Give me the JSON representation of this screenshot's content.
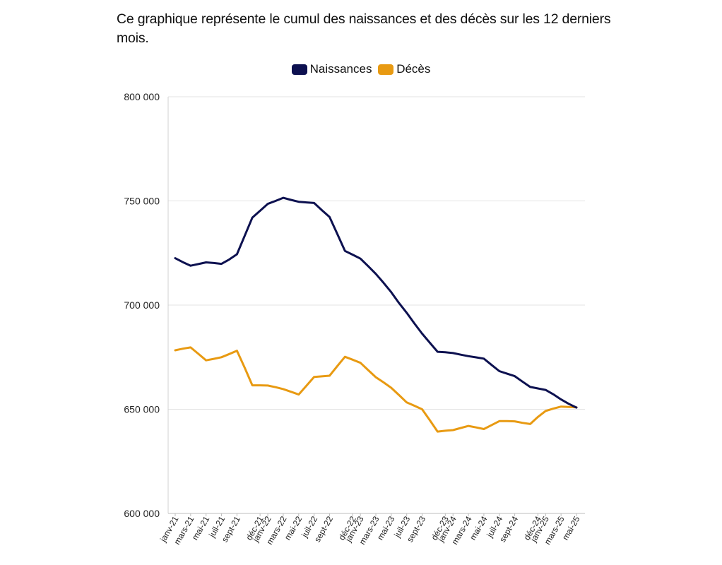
{
  "chart_data": {
    "type": "line",
    "title": "Ce graphique représente le cumul des naissances et des décès sur les 12 derniers mois.",
    "xlabel": "",
    "ylabel": "",
    "ylim": [
      600000,
      800000
    ],
    "yticks": [
      600000,
      650000,
      700000,
      750000,
      800000
    ],
    "ytick_labels": [
      "600 000",
      "650 000",
      "700 000",
      "750 000",
      "800 000"
    ],
    "grid": true,
    "legend_position": "top-center",
    "categories": [
      "janv-21",
      "févr-21",
      "mars-21",
      "avr-21",
      "mai-21",
      "juin-21",
      "juil-21",
      "août-21",
      "sept-21",
      "oct-21",
      "nov-21",
      "déc-21",
      "janv-22",
      "févr-22",
      "mars-22",
      "avr-22",
      "mai-22",
      "juin-22",
      "juil-22",
      "août-22",
      "sept-22",
      "oct-22",
      "nov-22",
      "déc-22",
      "janv-23",
      "févr-23",
      "mars-23",
      "avr-23",
      "mai-23",
      "juin-23",
      "juil-23",
      "août-23",
      "sept-23",
      "oct-23",
      "nov-23",
      "déc-23",
      "janv-24",
      "févr-24",
      "mars-24",
      "avr-24",
      "mai-24",
      "juin-24",
      "juil-24",
      "août-24",
      "sept-24",
      "oct-24",
      "nov-24",
      "déc-24",
      "janv-25",
      "févr-25",
      "mars-25",
      "avr-25",
      "mai-25"
    ],
    "x_tick_labels": [
      "janv-21",
      "mars-21",
      "mai-21",
      "juil-21",
      "sept-21",
      "déc-21",
      "janv-22",
      "mars-22",
      "mai-22",
      "juil-22",
      "sept-22",
      "déc-22",
      "janv-23",
      "mars-23",
      "mai-23",
      "juil-23",
      "sept-23",
      "déc-23",
      "janv-24",
      "mars-24",
      "mai-24",
      "juil-24",
      "sept-24",
      "déc-24",
      "janv-25",
      "mars-25",
      "mai-25"
    ],
    "series": [
      {
        "name": "Naissances",
        "color": "#0d1150",
        "values": [
          722500,
          720600,
          718900,
          719700,
          720500,
          720200,
          719800,
          721900,
          724400,
          733200,
          742000,
          745300,
          748600,
          750000,
          751500,
          750500,
          749600,
          749300,
          749000,
          745600,
          742300,
          734200,
          726000,
          724200,
          722300,
          718700,
          715000,
          710700,
          706200,
          701000,
          696300,
          691200,
          686300,
          681900,
          677600,
          677400,
          677000,
          676200,
          675500,
          674900,
          674300,
          671300,
          668300,
          667100,
          665900,
          663300,
          660700,
          660000,
          659300,
          657200,
          654700,
          652600,
          650800
        ]
      },
      {
        "name": "Décès",
        "color": "#e89a12",
        "values": [
          678300,
          679100,
          679700,
          676600,
          673500,
          674200,
          675000,
          676500,
          678100,
          670000,
          661500,
          661500,
          661400,
          660600,
          659700,
          658400,
          657100,
          661300,
          665500,
          665800,
          666100,
          670700,
          675200,
          673800,
          672300,
          668800,
          665400,
          662900,
          660300,
          656800,
          653300,
          651700,
          650000,
          644700,
          639300,
          639700,
          640000,
          641000,
          642000,
          641300,
          640500,
          642400,
          644300,
          644300,
          644200,
          643500,
          642900,
          646300,
          649200,
          650300,
          651300,
          651100,
          650900
        ]
      }
    ]
  }
}
